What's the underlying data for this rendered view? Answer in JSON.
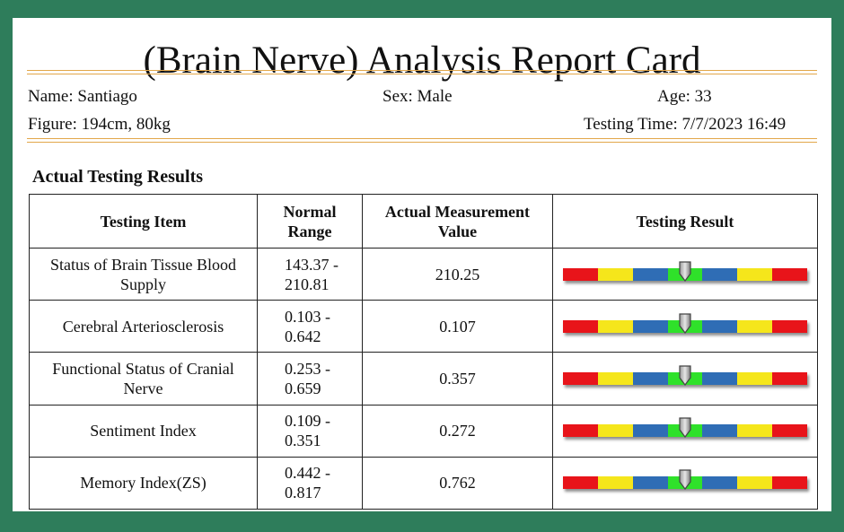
{
  "title": "(Brain Nerve) Analysis Report Card",
  "patient": {
    "name": "Name: Santiago",
    "sex": "Sex: Male",
    "age": "Age: 33",
    "figure": "Figure: 194cm, 80kg",
    "testing_time": "Testing Time: 7/7/2023 16:49"
  },
  "section_title": "Actual Testing Results",
  "table": {
    "headers": [
      "Testing Item",
      "Normal Range",
      "Actual Measurement Value",
      "Testing Result"
    ],
    "rows": [
      {
        "item": "Status of Brain Tissue Blood Supply",
        "range": "143.37 - 210.81",
        "value": "210.25",
        "gauge_level": 0.5
      },
      {
        "item": "Cerebral Arteriosclerosis",
        "range": "0.103 - 0.642",
        "value": "0.107",
        "gauge_level": 0.5
      },
      {
        "item": "Functional Status of Cranial Nerve",
        "range": "0.253 - 0.659",
        "value": "0.357",
        "gauge_level": 0.5
      },
      {
        "item": "Sentiment Index",
        "range": "0.109 - 0.351",
        "value": "0.272",
        "gauge_level": 0.5
      },
      {
        "item": "Memory Index(ZS)",
        "range": "0.442 - 0.817",
        "value": "0.762",
        "gauge_level": 0.5
      }
    ]
  },
  "gauge_colors": [
    "#e8141a",
    "#f5e61b",
    "#2f6db5",
    "#2fe12a",
    "#2f6db5",
    "#f5e61b",
    "#e8141a"
  ],
  "frame_color": "#2e7d5b",
  "accent_rule_color": "#e2a74a"
}
